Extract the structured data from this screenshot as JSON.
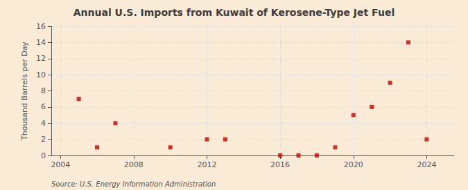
{
  "chart_data": {
    "type": "scatter",
    "title": "Annual U.S. Imports from Kuwait of Kerosene-Type Jet Fuel",
    "ylabel": "Thousand Barrels per Day",
    "annotations": [
      "Source: U.S. Energy Information Administration"
    ],
    "x": [
      2005,
      2006,
      2007,
      2010,
      2012,
      2013,
      2016,
      2017,
      2018,
      2019,
      2020,
      2021,
      2022,
      2023,
      2024
    ],
    "values": [
      7,
      1,
      4,
      1,
      2,
      2,
      0,
      0,
      0,
      1,
      5,
      6,
      9,
      14,
      2
    ],
    "color": "#cc0000",
    "marker": "square",
    "xlim": [
      2003.5,
      2025.5
    ],
    "xticks": [
      2004,
      2008,
      2012,
      2016,
      2020,
      2024
    ],
    "ylim": [
      0,
      16
    ],
    "yticks": [
      0,
      2,
      4,
      6,
      8,
      10,
      12,
      14,
      16
    ],
    "grid": true
  }
}
